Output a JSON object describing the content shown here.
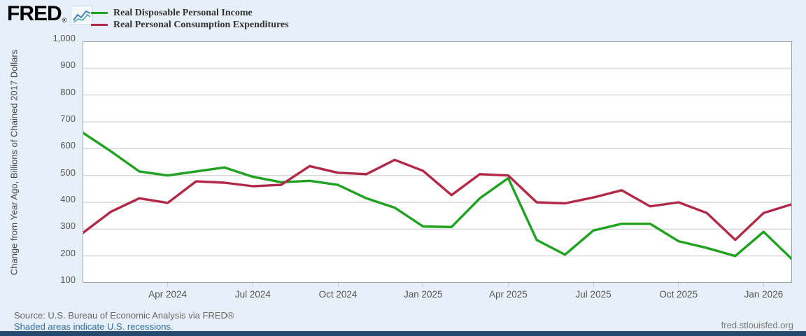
{
  "header": {
    "logo_text": "FRED",
    "registered_mark": "®",
    "logo_chart_icon": "zigzag-sparkline-icon"
  },
  "legend": [
    {
      "label": "Real Disposable Personal Income",
      "color": "#1fa21f"
    },
    {
      "label": "Real Personal Consumption Expenditures",
      "color": "#b22848"
    }
  ],
  "chart_data": {
    "type": "line",
    "title": "",
    "xlabel": "",
    "ylabel": "Change from Year Ago, Billions of Chained 2017 Dollars",
    "ylim": [
      100,
      1000
    ],
    "grid": true,
    "legend_position": "top-left",
    "yticks": [
      {
        "value": 1000,
        "label": "1,000"
      },
      {
        "value": 900,
        "label": "900"
      },
      {
        "value": 800,
        "label": "800"
      },
      {
        "value": 700,
        "label": "700"
      },
      {
        "value": 600,
        "label": "600"
      },
      {
        "value": 500,
        "label": "500"
      },
      {
        "value": 400,
        "label": "400"
      },
      {
        "value": 300,
        "label": "300"
      },
      {
        "value": 200,
        "label": "200"
      },
      {
        "value": 100,
        "label": "100"
      }
    ],
    "x": [
      "Jan 2024",
      "Feb 2024",
      "Mar 2024",
      "Apr 2024",
      "May 2024",
      "Jun 2024",
      "Jul 2024",
      "Aug 2024",
      "Sep 2024",
      "Oct 2024",
      "Nov 2024",
      "Dec 2024",
      "Jan 2025",
      "Feb 2025",
      "Mar 2025",
      "Apr 2025",
      "May 2025",
      "Jun 2025",
      "Jul 2025",
      "Aug 2025",
      "Sep 2025",
      "Oct 2025",
      "Nov 2025",
      "Dec 2025",
      "Jan 2026",
      "Feb 2026"
    ],
    "x_ticks": [
      {
        "index": 3,
        "label": "Apr 2024"
      },
      {
        "index": 6,
        "label": "Jul 2024"
      },
      {
        "index": 9,
        "label": "Oct 2024"
      },
      {
        "index": 12,
        "label": "Jan 2025"
      },
      {
        "index": 15,
        "label": "Apr 2025"
      },
      {
        "index": 18,
        "label": "Jul 2025"
      },
      {
        "index": 21,
        "label": "Oct 2025"
      },
      {
        "index": 24,
        "label": "Jan 2026"
      }
    ],
    "series": [
      {
        "name": "Real Disposable Personal Income",
        "color": "#1fa21f",
        "values": [
          660,
          590,
          515,
          500,
          515,
          530,
          495,
          475,
          480,
          465,
          415,
          380,
          310,
          308,
          415,
          490,
          260,
          205,
          295,
          320,
          320,
          255,
          230,
          200,
          290,
          188
        ]
      },
      {
        "name": "Real Personal Consumption Expenditures",
        "color": "#b22848",
        "values": [
          285,
          365,
          415,
          398,
          478,
          473,
          460,
          465,
          535,
          510,
          505,
          558,
          517,
          427,
          505,
          500,
          400,
          396,
          418,
          445,
          385,
          400,
          360,
          260,
          360,
          393
        ]
      }
    ]
  },
  "footer": {
    "source_text": "Source: U.S. Bureau of Economic Analysis via FRED®",
    "recessions_link": "Shaded areas indicate U.S. recessions.",
    "site_url": "fred.stlouisfed.org"
  },
  "style": {
    "background": "#e7f0f8",
    "plot_background": "#ffffff",
    "gridline_color": "#cfcfcf",
    "plot_border_color": "#9aa5ad",
    "tick_text_color": "#555555",
    "bottom_bar_color": "#254b72",
    "link_color": "#2e6da4"
  }
}
